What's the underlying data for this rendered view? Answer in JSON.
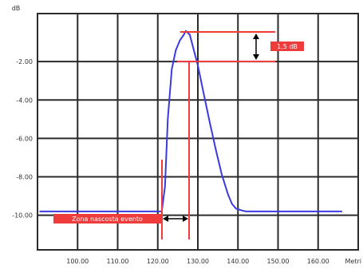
{
  "chart_data": {
    "type": "line",
    "y_unit": "dB",
    "x_unit": "Metri",
    "x_ticks": [
      "100.00",
      "110.00",
      "120.00",
      "130.00",
      "140.00",
      "150.00",
      "160.00"
    ],
    "y_ticks": [
      "-2.00",
      "-4.00",
      "-6.00",
      "-8.00",
      "-10.00"
    ],
    "xlim": [
      90,
      170
    ],
    "ylim": [
      -11.8,
      0.5
    ],
    "grid": true,
    "series": [
      {
        "color": "#3a3ae0",
        "x": [
          90.5,
          121.0,
          121.8,
          122.5,
          123.5,
          124.5,
          125.5,
          126.5,
          127.0,
          128.0,
          130.0,
          131.5,
          133.0,
          134.5,
          136.0,
          137.5,
          138.5,
          139.5,
          141.0,
          142.0,
          166.0
        ],
        "y": [
          -9.8,
          -9.8,
          -8.5,
          -5.0,
          -2.4,
          -1.4,
          -0.9,
          -0.6,
          -0.4,
          -0.6,
          -2.2,
          -3.7,
          -5.2,
          -6.6,
          -7.9,
          -8.9,
          -9.4,
          -9.65,
          -9.75,
          -9.8,
          -9.8
        ]
      }
    ],
    "annotations": {
      "level_label": "1,5 dB",
      "zone_label": "Zona nascosta evento"
    },
    "colors": {
      "annotation": "#ee3b3b",
      "grid": "#2b2b2b",
      "series": "#3a3ae0"
    }
  }
}
